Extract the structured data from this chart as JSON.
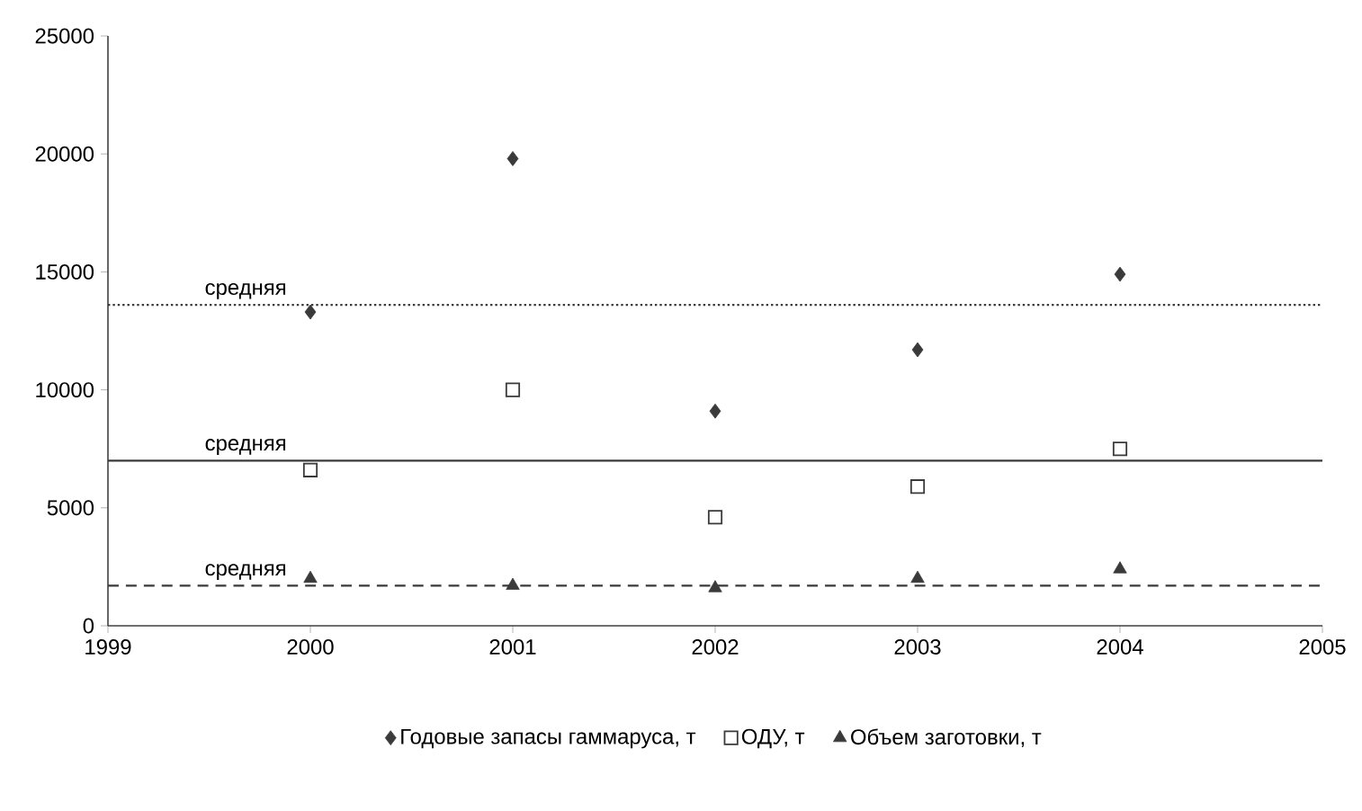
{
  "chart_data": {
    "type": "scatter",
    "x": [
      2000,
      2001,
      2002,
      2003,
      2004
    ],
    "series": [
      {
        "name": "Годовые запасы гаммаруса, т",
        "color": "#3a3a3a",
        "marker": "diamond",
        "values": [
          13300,
          19800,
          9100,
          11700,
          14900
        ]
      },
      {
        "name": "ОДУ, т",
        "color": "#3a3a3a",
        "marker": "square",
        "values": [
          6600,
          10000,
          4600,
          5900,
          7500
        ]
      },
      {
        "name": "Объем заготовки, т",
        "color": "#3a3a3a",
        "marker": "triangle",
        "values": [
          2000,
          1700,
          1600,
          2000,
          2400
        ]
      }
    ],
    "ref_lines": [
      {
        "axis": "y",
        "value": 13600,
        "label": "средняя",
        "color": "#3a3a3a",
        "line_style": "dotted"
      },
      {
        "axis": "y",
        "value": 7000,
        "label": "средняя",
        "color": "#3a3a3a",
        "line_style": "solid"
      },
      {
        "axis": "y",
        "value": 1700,
        "label": "средняя",
        "color": "#3a3a3a",
        "line_style": "dashed"
      }
    ],
    "xlim": [
      1999,
      2005
    ],
    "xticks": [
      1999,
      2000,
      2001,
      2002,
      2003,
      2004,
      2005
    ],
    "ylim": [
      0,
      25000
    ],
    "yticks": [
      0,
      5000,
      10000,
      15000,
      20000,
      25000
    ],
    "legend": "bottom",
    "grid": false
  }
}
